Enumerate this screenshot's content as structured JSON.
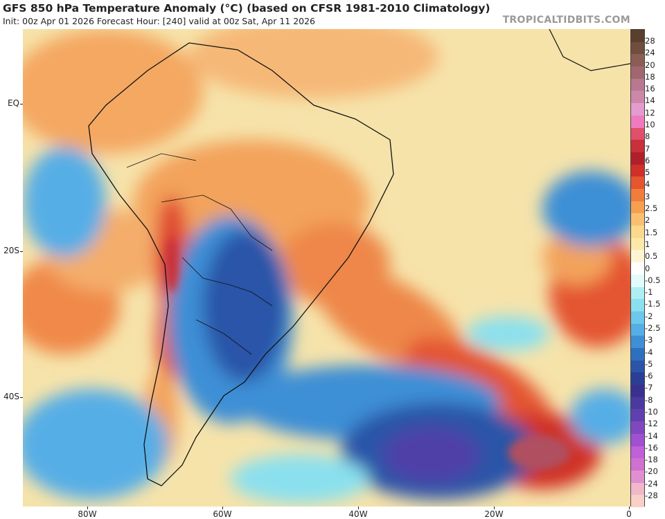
{
  "header": {
    "title": "GFS 850 hPa Temperature Anomaly (°C) (based on CFSR 1981-2010 Climatology)",
    "subtitle": "Init: 00z Apr 01 2026   Forecast Hour: [240]   valid at 00z Sat, Apr 11 2026",
    "brand": "TROPICALTIDBITS.COM"
  },
  "axes": {
    "lat_labels": [
      "EQ",
      "20S",
      "40S"
    ],
    "lon_labels": [
      "80W",
      "60W",
      "40W",
      "20W",
      "0"
    ]
  },
  "colorbar": {
    "labels": [
      "28",
      "24",
      "20",
      "18",
      "16",
      "14",
      "12",
      "10",
      "8",
      "7",
      "6",
      "5",
      "4",
      "3",
      "2.5",
      "2",
      "1.5",
      "1",
      "0.5",
      "0",
      "-0.5",
      "-1",
      "-1.5",
      "-2",
      "-2.5",
      "-3",
      "-4",
      "-5",
      "-6",
      "-7",
      "-8",
      "-10",
      "-12",
      "-14",
      "-16",
      "-18",
      "-20",
      "-24",
      "-28"
    ],
    "colors": [
      "#5a3e2e",
      "#6f4e3f",
      "#8a5e56",
      "#a0686e",
      "#b87890",
      "#cc88a8",
      "#e49ccf",
      "#f07ac0",
      "#e0506a",
      "#c8303a",
      "#b0202a",
      "#d03028",
      "#e45530",
      "#f07d3c",
      "#f5a050",
      "#f9c070",
      "#fbd88c",
      "#fce8a8",
      "#fef6d2",
      "#ffffff",
      "#e2fbfb",
      "#aef0f2",
      "#8ae0ee",
      "#6cc8ec",
      "#56aee6",
      "#3e8fd6",
      "#2e6fc0",
      "#2a55a8",
      "#2a3e95",
      "#3a3090",
      "#4a3aa0",
      "#6040b0",
      "#8048c0",
      "#a050d0",
      "#c060d8",
      "#d070d0",
      "#e090d0",
      "#f0b8c8",
      "#f8d0c8"
    ]
  }
}
